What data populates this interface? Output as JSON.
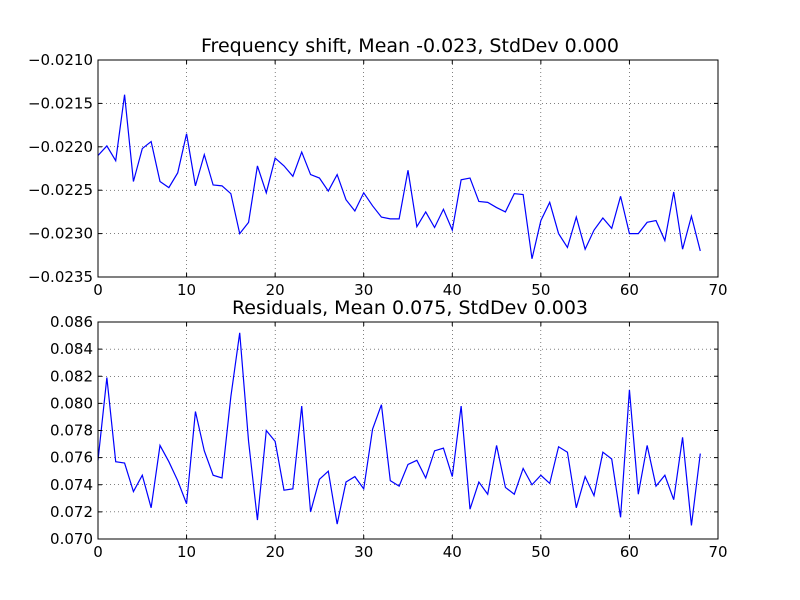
{
  "chart_data": [
    {
      "type": "line",
      "title": "Frequency shift, Mean -0.023, StdDev 0.000",
      "xlabel": "",
      "ylabel": "",
      "xlim": [
        0,
        70
      ],
      "ylim": [
        -0.0235,
        -0.021
      ],
      "xticks": [
        0,
        10,
        20,
        30,
        40,
        50,
        60,
        70
      ],
      "xtick_labels": [
        "0",
        "10",
        "20",
        "30",
        "40",
        "50",
        "60",
        "70"
      ],
      "yticks": [
        -0.0235,
        -0.023,
        -0.0225,
        -0.022,
        -0.0215,
        -0.021
      ],
      "ytick_labels": [
        "−0.0235",
        "−0.0230",
        "−0.0225",
        "−0.0220",
        "−0.0215",
        "−0.0210"
      ],
      "grid": true,
      "series": [
        {
          "color": "#0000ff",
          "x": [
            0,
            1,
            2,
            3,
            4,
            5,
            6,
            7,
            8,
            9,
            10,
            11,
            12,
            13,
            14,
            15,
            16,
            17,
            18,
            19,
            20,
            21,
            22,
            23,
            24,
            25,
            26,
            27,
            28,
            29,
            30,
            31,
            32,
            33,
            34,
            35,
            36,
            37,
            38,
            39,
            40,
            41,
            42,
            43,
            44,
            45,
            46,
            47,
            48,
            49,
            50,
            51,
            52,
            53,
            54,
            55,
            56,
            57,
            58,
            59,
            60,
            61,
            62,
            63,
            64,
            65,
            66,
            67,
            68
          ],
          "y": [
            -0.0221,
            -0.02199,
            -0.02216,
            -0.0214,
            -0.0224,
            -0.02202,
            -0.02194,
            -0.0224,
            -0.02247,
            -0.0223,
            -0.02185,
            -0.02245,
            -0.02209,
            -0.02244,
            -0.02245,
            -0.02254,
            -0.023,
            -0.02287,
            -0.02222,
            -0.02253,
            -0.02213,
            -0.02222,
            -0.02234,
            -0.02206,
            -0.02232,
            -0.02236,
            -0.02251,
            -0.02232,
            -0.02261,
            -0.02274,
            -0.02253,
            -0.02268,
            -0.02281,
            -0.02283,
            -0.02283,
            -0.02227,
            -0.02292,
            -0.02275,
            -0.02293,
            -0.02272,
            -0.02296,
            -0.02238,
            -0.02236,
            -0.02263,
            -0.02264,
            -0.0227,
            -0.02275,
            -0.02254,
            -0.02255,
            -0.02329,
            -0.02285,
            -0.02264,
            -0.023,
            -0.02316,
            -0.02281,
            -0.02318,
            -0.02296,
            -0.02282,
            -0.02294,
            -0.02257,
            -0.023,
            -0.023,
            -0.02287,
            -0.02285,
            -0.02308,
            -0.02252,
            -0.02318,
            -0.0228,
            -0.0232
          ]
        }
      ]
    },
    {
      "type": "line",
      "title": "Residuals, Mean 0.075, StdDev 0.003",
      "xlabel": "",
      "ylabel": "",
      "xlim": [
        0,
        70
      ],
      "ylim": [
        0.07,
        0.086
      ],
      "xticks": [
        0,
        10,
        20,
        30,
        40,
        50,
        60,
        70
      ],
      "xtick_labels": [
        "0",
        "10",
        "20",
        "30",
        "40",
        "50",
        "60",
        "70"
      ],
      "yticks": [
        0.07,
        0.072,
        0.074,
        0.076,
        0.078,
        0.08,
        0.082,
        0.084,
        0.086
      ],
      "ytick_labels": [
        "0.070",
        "0.072",
        "0.074",
        "0.076",
        "0.078",
        "0.080",
        "0.082",
        "0.084",
        "0.086"
      ],
      "grid": true,
      "series": [
        {
          "color": "#0000ff",
          "x": [
            0,
            1,
            2,
            3,
            4,
            5,
            6,
            7,
            8,
            9,
            10,
            11,
            12,
            13,
            14,
            15,
            16,
            17,
            18,
            19,
            20,
            21,
            22,
            23,
            24,
            25,
            26,
            27,
            28,
            29,
            30,
            31,
            32,
            33,
            34,
            35,
            36,
            37,
            38,
            39,
            40,
            41,
            42,
            43,
            44,
            45,
            46,
            47,
            48,
            49,
            50,
            51,
            52,
            53,
            54,
            55,
            56,
            57,
            58,
            59,
            60,
            61,
            62,
            63,
            64,
            65,
            66,
            67,
            68
          ],
          "y": [
            0.0758,
            0.0819,
            0.0757,
            0.0756,
            0.0735,
            0.0747,
            0.0723,
            0.0769,
            0.0757,
            0.0743,
            0.0726,
            0.0794,
            0.0765,
            0.0747,
            0.0745,
            0.0805,
            0.0852,
            0.0772,
            0.0714,
            0.078,
            0.0772,
            0.0736,
            0.0737,
            0.0798,
            0.072,
            0.0744,
            0.075,
            0.0711,
            0.0742,
            0.0746,
            0.0737,
            0.0781,
            0.0799,
            0.0743,
            0.0739,
            0.0755,
            0.0758,
            0.0745,
            0.0765,
            0.0767,
            0.0746,
            0.0798,
            0.0722,
            0.0742,
            0.0733,
            0.0769,
            0.0738,
            0.0733,
            0.0752,
            0.074,
            0.0747,
            0.0741,
            0.0768,
            0.0764,
            0.0723,
            0.0746,
            0.0732,
            0.0764,
            0.0759,
            0.0716,
            0.081,
            0.0733,
            0.0769,
            0.0739,
            0.0747,
            0.0729,
            0.0775,
            0.071,
            0.0763
          ]
        }
      ]
    }
  ]
}
